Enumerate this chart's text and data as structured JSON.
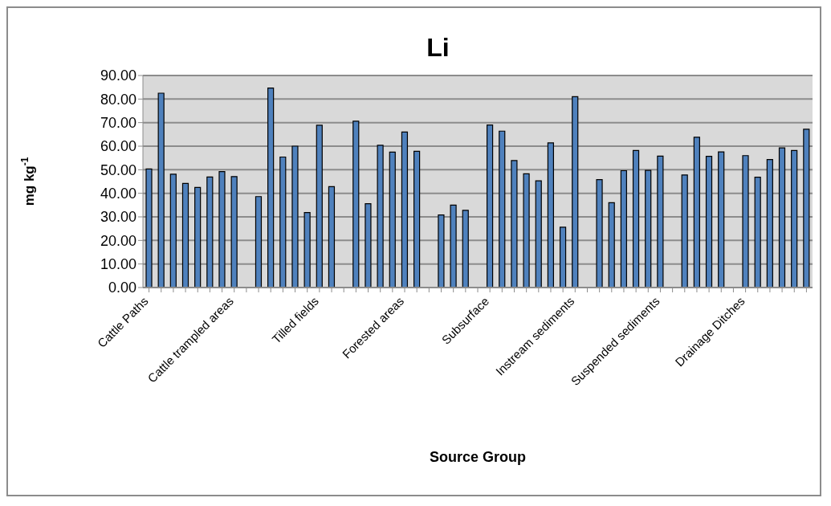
{
  "chart_data": {
    "type": "bar",
    "title": "Li",
    "xlabel": "Source Group",
    "ylabel": "mg kg$^{-1}$",
    "categories": [
      "Cattle Paths",
      null,
      null,
      null,
      null,
      null,
      null,
      "Cattle trampled areas",
      null,
      null,
      null,
      null,
      null,
      null,
      "Tilled fields",
      null,
      null,
      null,
      null,
      null,
      null,
      "Forested areas",
      null,
      null,
      null,
      null,
      null,
      null,
      "Subsurface",
      null,
      null,
      null,
      null,
      null,
      null,
      "Instream sediments",
      null,
      null,
      null,
      null,
      null,
      null,
      "Suspended sediments",
      null,
      null,
      null,
      null,
      null,
      null,
      "Drainage Ditches",
      null,
      null,
      null,
      null,
      null
    ],
    "values": [
      50.3,
      82.5,
      48.1,
      44.2,
      42.5,
      46.9,
      49.2,
      47.1,
      null,
      38.6,
      84.7,
      55.4,
      60.0,
      31.8,
      68.9,
      42.8,
      null,
      70.6,
      35.6,
      60.4,
      57.5,
      66.0,
      57.8,
      null,
      30.8,
      35.0,
      32.8,
      null,
      69.0,
      66.4,
      53.9,
      48.3,
      45.3,
      61.4,
      25.6,
      81.0,
      null,
      45.8,
      36.0,
      49.6,
      58.2,
      49.7,
      55.8,
      null,
      47.8,
      63.8,
      55.7,
      57.6,
      null,
      56.0,
      46.8,
      54.3,
      59.3,
      58.2,
      67.2
    ],
    "color": "#4f81bd",
    "ylim": [
      0,
      90
    ],
    "yticks": [
      {
        "value": 0,
        "label": "0.00"
      },
      {
        "value": 10,
        "label": "10.00"
      },
      {
        "value": 20,
        "label": "20.00"
      },
      {
        "value": 30,
        "label": "30.00"
      },
      {
        "value": 40,
        "label": "40.00"
      },
      {
        "value": 50,
        "label": "50.00"
      },
      {
        "value": 60,
        "label": "60.00"
      },
      {
        "value": 70,
        "label": "70.00"
      },
      {
        "value": 80,
        "label": "80.00"
      },
      {
        "value": 90,
        "label": "90.00"
      }
    ],
    "grid": "y"
  }
}
